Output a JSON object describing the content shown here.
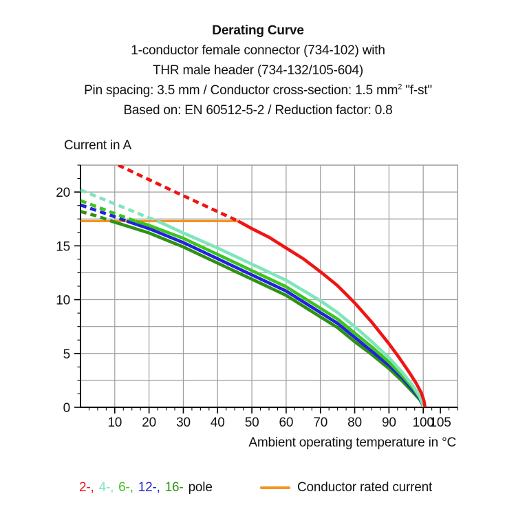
{
  "title": {
    "heading": "Derating Curve",
    "line2": "1-conductor female connector (734-102) with",
    "line3": "THR male header (734-132/105-604)",
    "spec": {
      "before_sup": "Pin spacing: 3.5 mm / Conductor cross-section: 1.5 mm",
      "sup": "2",
      "after_sup": " \"f-st\""
    },
    "basis": "Based on: EN 60512-5-2 / Reduction factor: 0.8"
  },
  "chart_data": {
    "type": "line",
    "ylabel": "Current in A",
    "xlabel": "Ambient operating temperature in °C",
    "xlim": [
      0,
      110
    ],
    "ylim": [
      0,
      22.5
    ],
    "x_ticks": [
      10,
      20,
      30,
      40,
      50,
      60,
      70,
      80,
      90,
      100,
      105
    ],
    "y_ticks": [
      0,
      5,
      10,
      15,
      20
    ],
    "x_minor_step": 2.5,
    "y_minor_step": 1.25,
    "grid": {
      "x_step": 10,
      "y_step": 2.5,
      "color": "#9c9c9c"
    },
    "legend_position": "bottom",
    "series": [
      {
        "name": "2-pole",
        "color": "#f01414",
        "stroke_width": 4.6,
        "dashed_points": [
          [
            11,
            22.5
          ],
          [
            28,
            19.95
          ],
          [
            46,
            17.3
          ]
        ],
        "solid_points": [
          [
            46,
            17.3
          ],
          [
            50,
            16.6
          ],
          [
            55,
            15.8
          ],
          [
            60,
            14.8
          ],
          [
            65,
            13.8
          ],
          [
            70,
            12.6
          ],
          [
            75,
            11.3
          ],
          [
            80,
            9.7
          ],
          [
            85,
            7.9
          ],
          [
            90,
            5.9
          ],
          [
            93,
            4.6
          ],
          [
            96,
            3.2
          ],
          [
            98,
            2.2
          ],
          [
            99.5,
            1.3
          ],
          [
            100.2,
            0.6
          ],
          [
            100.5,
            0
          ]
        ]
      },
      {
        "name": "4-pole",
        "color": "#80e5bc",
        "stroke_width": 4.6,
        "dashed_points": [
          [
            0,
            20.2
          ],
          [
            5,
            19.55
          ],
          [
            10,
            18.9
          ],
          [
            15,
            18.25
          ],
          [
            20,
            17.6
          ],
          [
            22.5,
            17.3
          ]
        ],
        "solid_points": [
          [
            22.5,
            17.3
          ],
          [
            30,
            16.2
          ],
          [
            40,
            14.8
          ],
          [
            50,
            13.3
          ],
          [
            60,
            11.8
          ],
          [
            70,
            9.9
          ],
          [
            75,
            8.8
          ],
          [
            80,
            7.5
          ],
          [
            85,
            6.1
          ],
          [
            90,
            4.6
          ],
          [
            94,
            3.2
          ],
          [
            97,
            2.0
          ],
          [
            99,
            1.0
          ],
          [
            100.2,
            0
          ]
        ]
      },
      {
        "name": "6-pole",
        "color": "#3bc41e",
        "stroke_width": 4.6,
        "dashed_points": [
          [
            0,
            19.2
          ],
          [
            5,
            18.6
          ],
          [
            10,
            18.0
          ],
          [
            16,
            17.3
          ]
        ],
        "solid_points": [
          [
            16,
            17.3
          ],
          [
            20,
            16.9
          ],
          [
            30,
            15.7
          ],
          [
            40,
            14.2
          ],
          [
            50,
            12.7
          ],
          [
            60,
            11.2
          ],
          [
            70,
            9.2
          ],
          [
            75,
            8.2
          ],
          [
            80,
            6.9
          ],
          [
            85,
            5.6
          ],
          [
            90,
            4.2
          ],
          [
            94,
            2.9
          ],
          [
            97,
            1.8
          ],
          [
            99,
            0.9
          ],
          [
            100.2,
            0
          ]
        ]
      },
      {
        "name": "12-pole",
        "color": "#2222dd",
        "stroke_width": 4.6,
        "dashed_points": [
          [
            0,
            18.8
          ],
          [
            5,
            18.25
          ],
          [
            10,
            17.7
          ],
          [
            13.5,
            17.3
          ]
        ],
        "solid_points": [
          [
            13.5,
            17.3
          ],
          [
            20,
            16.6
          ],
          [
            30,
            15.3
          ],
          [
            40,
            13.8
          ],
          [
            50,
            12.3
          ],
          [
            60,
            10.8
          ],
          [
            70,
            8.8
          ],
          [
            75,
            7.8
          ],
          [
            80,
            6.5
          ],
          [
            85,
            5.2
          ],
          [
            90,
            3.9
          ],
          [
            94,
            2.7
          ],
          [
            97,
            1.6
          ],
          [
            99,
            0.8
          ],
          [
            100.2,
            0
          ]
        ]
      },
      {
        "name": "16-pole",
        "color": "#2f9212",
        "stroke_width": 4.6,
        "dashed_points": [
          [
            0,
            18.2
          ],
          [
            5,
            17.75
          ],
          [
            9,
            17.3
          ]
        ],
        "solid_points": [
          [
            9,
            17.3
          ],
          [
            20,
            16.2
          ],
          [
            30,
            14.9
          ],
          [
            40,
            13.4
          ],
          [
            50,
            11.9
          ],
          [
            60,
            10.4
          ],
          [
            70,
            8.4
          ],
          [
            75,
            7.4
          ],
          [
            80,
            6.1
          ],
          [
            85,
            4.9
          ],
          [
            90,
            3.6
          ],
          [
            94,
            2.4
          ],
          [
            97,
            1.4
          ],
          [
            99,
            0.7
          ],
          [
            100.2,
            0
          ]
        ]
      },
      {
        "name": "Conductor rated current",
        "color": "#f5941e",
        "stroke_width": 3.2,
        "solid_points": [
          [
            0,
            17.3
          ],
          [
            46,
            17.3
          ]
        ]
      }
    ]
  },
  "legend": {
    "pole_items": [
      {
        "pole": "2",
        "label": "2-,",
        "color": "#f01414"
      },
      {
        "pole": "4",
        "label": "4-,",
        "color": "#80e5bc"
      },
      {
        "pole": "6",
        "label": "6-,",
        "color": "#3bc41e"
      },
      {
        "pole": "12",
        "label": "12-,",
        "color": "#2222dd"
      },
      {
        "pole": "16",
        "label": "16-",
        "color": "#2f9212"
      }
    ],
    "pole_suffix": "pole",
    "rated_label": "Conductor rated current",
    "rated_color": "#f5941e"
  }
}
